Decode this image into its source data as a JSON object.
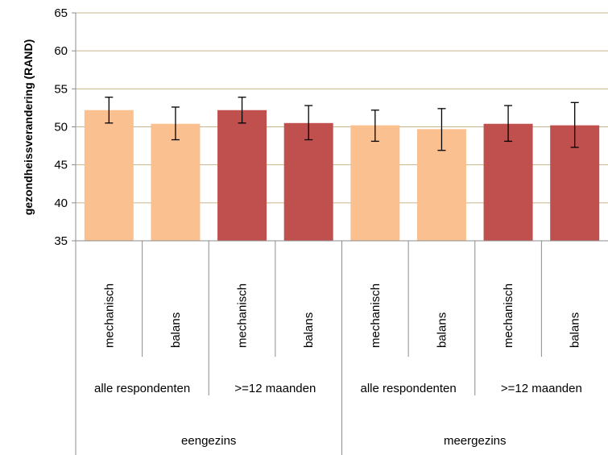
{
  "chart_data": {
    "type": "bar",
    "ylabel": "gezondheissverandering (RAND)",
    "xlabel": "",
    "ylim": [
      35,
      65
    ],
    "yticks": [
      35,
      40,
      45,
      50,
      55,
      60,
      65
    ],
    "grid": true,
    "categories": [
      "mechanisch",
      "balans",
      "mechanisch",
      "balans",
      "mechanisch",
      "balans",
      "mechanisch",
      "balans"
    ],
    "subgroups": [
      "alle respondenten",
      ">=12 maanden",
      "alle respondenten",
      ">=12 maanden"
    ],
    "groups": [
      "eengezins",
      "meergezins"
    ],
    "values": [
      52.2,
      50.4,
      52.2,
      50.5,
      50.2,
      49.7,
      50.4,
      50.2
    ],
    "error_low": [
      50.5,
      48.3,
      50.5,
      48.3,
      48.1,
      46.9,
      48.1,
      47.3
    ],
    "error_high": [
      53.9,
      52.6,
      53.9,
      52.8,
      52.2,
      52.4,
      52.8,
      53.2
    ],
    "bar_colors": [
      "#FAC090",
      "#FAC090",
      "#C0504D",
      "#C0504D",
      "#FAC090",
      "#FAC090",
      "#C0504D",
      "#C0504D"
    ],
    "gridline_color": "#C8B48C"
  }
}
